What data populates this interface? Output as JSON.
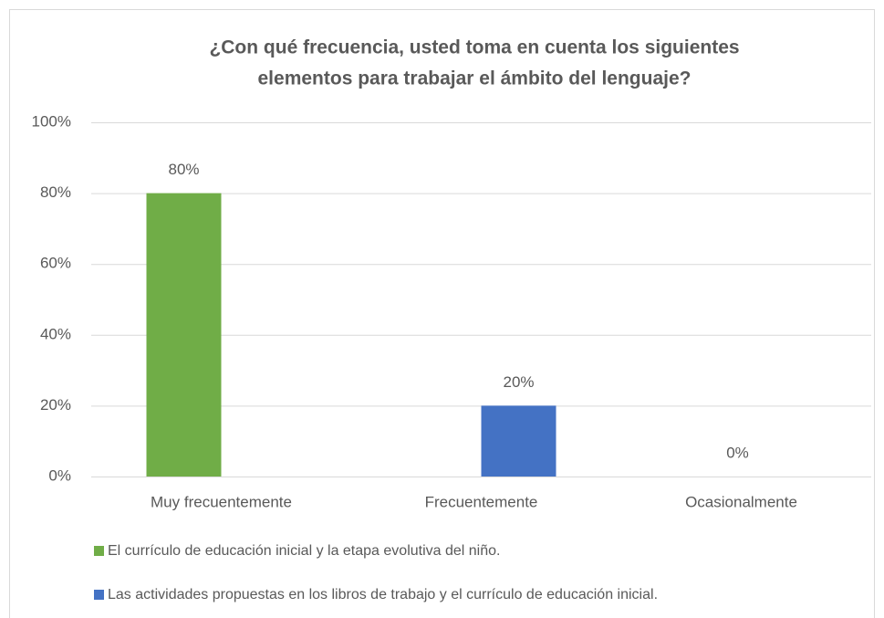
{
  "chart_data": {
    "type": "bar",
    "title": [
      "¿Con qué frecuencia, usted toma en cuenta los siguientes",
      "elementos para trabajar el ámbito del lenguaje?"
    ],
    "categories": [
      "Muy frecuentemente",
      "Frecuentemente",
      "Ocasionalmente"
    ],
    "series": [
      {
        "name": "El currículo de educación inicial y la etapa evolutiva del niño.",
        "color": "#70ad47",
        "values": [
          80,
          null,
          null
        ],
        "value_labels": [
          "80%",
          null,
          null
        ]
      },
      {
        "name": "Las actividades propuestas en los libros de trabajo y el currículo de educación inicial.",
        "color": "#4472c4",
        "values": [
          null,
          20,
          null
        ],
        "value_labels": [
          null,
          "20%",
          null
        ]
      },
      {
        "values": [
          null,
          null,
          0
        ],
        "value_labels": [
          null,
          null,
          "0%"
        ]
      }
    ],
    "ylim": [
      0,
      100
    ],
    "yticks": [
      {
        "value": 0,
        "label": "0%"
      },
      {
        "value": 20,
        "label": "20%"
      },
      {
        "value": 40,
        "label": "40%"
      },
      {
        "value": 60,
        "label": "60%"
      },
      {
        "value": 80,
        "label": "80%"
      },
      {
        "value": 100,
        "label": "100%"
      }
    ],
    "grid": true,
    "legend": "bottom"
  }
}
